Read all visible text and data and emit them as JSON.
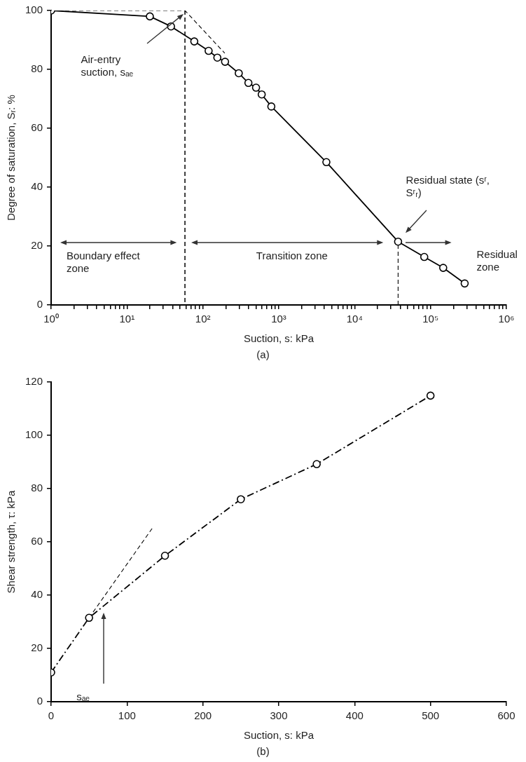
{
  "chart_data": [
    {
      "type": "line",
      "xlabel": "Suction, s: kPa",
      "ylabel": "Degree of saturation, Sᵣ: %",
      "log": "x",
      "xlim": [
        1,
        1000000
      ],
      "xticks": [
        {
          "value": 1,
          "label": "10⁰"
        },
        {
          "value": 2,
          "label": null
        },
        {
          "value": 3,
          "label": null
        },
        {
          "value": 4,
          "label": null
        },
        {
          "value": 5,
          "label": null
        },
        {
          "value": 6,
          "label": null
        },
        {
          "value": 7,
          "label": null
        },
        {
          "value": 8,
          "label": null
        },
        {
          "value": 9,
          "label": null
        },
        {
          "value": 10,
          "label": "10¹"
        },
        {
          "value": 20,
          "label": null
        },
        {
          "value": 30,
          "label": null
        },
        {
          "value": 40,
          "label": null
        },
        {
          "value": 50,
          "label": null
        },
        {
          "value": 60,
          "label": null
        },
        {
          "value": 70,
          "label": null
        },
        {
          "value": 80,
          "label": null
        },
        {
          "value": 90,
          "label": null
        },
        {
          "value": 100,
          "label": "10²"
        },
        {
          "value": 200,
          "label": null
        },
        {
          "value": 300,
          "label": null
        },
        {
          "value": 400,
          "label": null
        },
        {
          "value": 500,
          "label": null
        },
        {
          "value": 600,
          "label": null
        },
        {
          "value": 700,
          "label": null
        },
        {
          "value": 800,
          "label": null
        },
        {
          "value": 900,
          "label": null
        },
        {
          "value": 1000,
          "label": "10³"
        },
        {
          "value": 2000,
          "label": null
        },
        {
          "value": 3000,
          "label": null
        },
        {
          "value": 4000,
          "label": null
        },
        {
          "value": 5000,
          "label": null
        },
        {
          "value": 6000,
          "label": null
        },
        {
          "value": 7000,
          "label": null
        },
        {
          "value": 8000,
          "label": null
        },
        {
          "value": 9000,
          "label": null
        },
        {
          "value": 10000,
          "label": "10⁴"
        },
        {
          "value": 20000,
          "label": null
        },
        {
          "value": 30000,
          "label": null
        },
        {
          "value": 40000,
          "label": null
        },
        {
          "value": 50000,
          "label": null
        },
        {
          "value": 60000,
          "label": null
        },
        {
          "value": 70000,
          "label": null
        },
        {
          "value": 80000,
          "label": null
        },
        {
          "value": 90000,
          "label": null
        },
        {
          "value": 100000,
          "label": "10⁵"
        },
        {
          "value": 200000,
          "label": null
        },
        {
          "value": 300000,
          "label": null
        },
        {
          "value": 400000,
          "label": null
        },
        {
          "value": 500000,
          "label": null
        },
        {
          "value": 600000,
          "label": null
        },
        {
          "value": 700000,
          "label": null
        },
        {
          "value": 800000,
          "label": null
        },
        {
          "value": 900000,
          "label": null
        },
        {
          "value": 1000000,
          "label": "10⁶"
        }
      ],
      "ylim": [
        0,
        100
      ],
      "yticks": [
        0,
        20,
        40,
        60,
        80,
        100
      ],
      "series": [
        {
          "type": "line",
          "color": "#000000",
          "marker": "circle",
          "line_style": "solid",
          "x": [
            1,
            20,
            38,
            77,
            119,
            155,
            196,
            297,
            398,
            502,
            596,
            798,
            4240,
            37400,
            82700,
            147000,
            282000
          ],
          "values": [
            100,
            98,
            94.6,
            89.5,
            86.3,
            84,
            82.6,
            78.7,
            75.4,
            73.8,
            71.5,
            67.4,
            48.5,
            21.5,
            16.3,
            12.6,
            7.3
          ]
        },
        {
          "type": "line",
          "color": "#000000",
          "marker": "none",
          "line_style": "dashed",
          "x": [
            1,
            58,
            194
          ],
          "values": [
            100,
            100,
            85.5
          ]
        },
        {
          "type": "line",
          "color": "#000000",
          "marker": "none",
          "line_style": "dashed",
          "x": [
            37400,
            37400
          ],
          "values": [
            0,
            21.5
          ]
        }
      ],
      "ref_lines": [
        {
          "axis": "x",
          "value": 58,
          "line_style": "dashed",
          "color": "#000000"
        }
      ],
      "annotations": [
        "Air-entry suction, sₐₑ",
        "Residual state (sʳ, Sʳᵣ)",
        "Boundary effect zone",
        "Transition zone",
        "Residual zone",
        "(a)"
      ]
    },
    {
      "type": "line",
      "xlabel": "Suction, s: kPa",
      "ylabel": "Shear strength, τ: kPa",
      "xlim": [
        0,
        600
      ],
      "xticks": [
        0,
        100,
        200,
        300,
        400,
        500,
        600
      ],
      "ylim": [
        0,
        120
      ],
      "yticks": [
        0,
        20,
        40,
        60,
        80,
        100,
        120
      ],
      "series": [
        {
          "type": "line",
          "color": "#000000",
          "marker": "circle",
          "line_style": "dashdot",
          "x": [
            0,
            50,
            150,
            250,
            350,
            500
          ],
          "values": [
            11,
            31.5,
            54.8,
            76,
            89.2,
            114.9
          ]
        },
        {
          "type": "line",
          "color": "#000000",
          "marker": "none",
          "line_style": "dashed",
          "x": [
            50,
            133
          ],
          "values": [
            31.5,
            65
          ]
        }
      ],
      "annotations": [
        "sₐₑ",
        "(b)"
      ]
    }
  ]
}
